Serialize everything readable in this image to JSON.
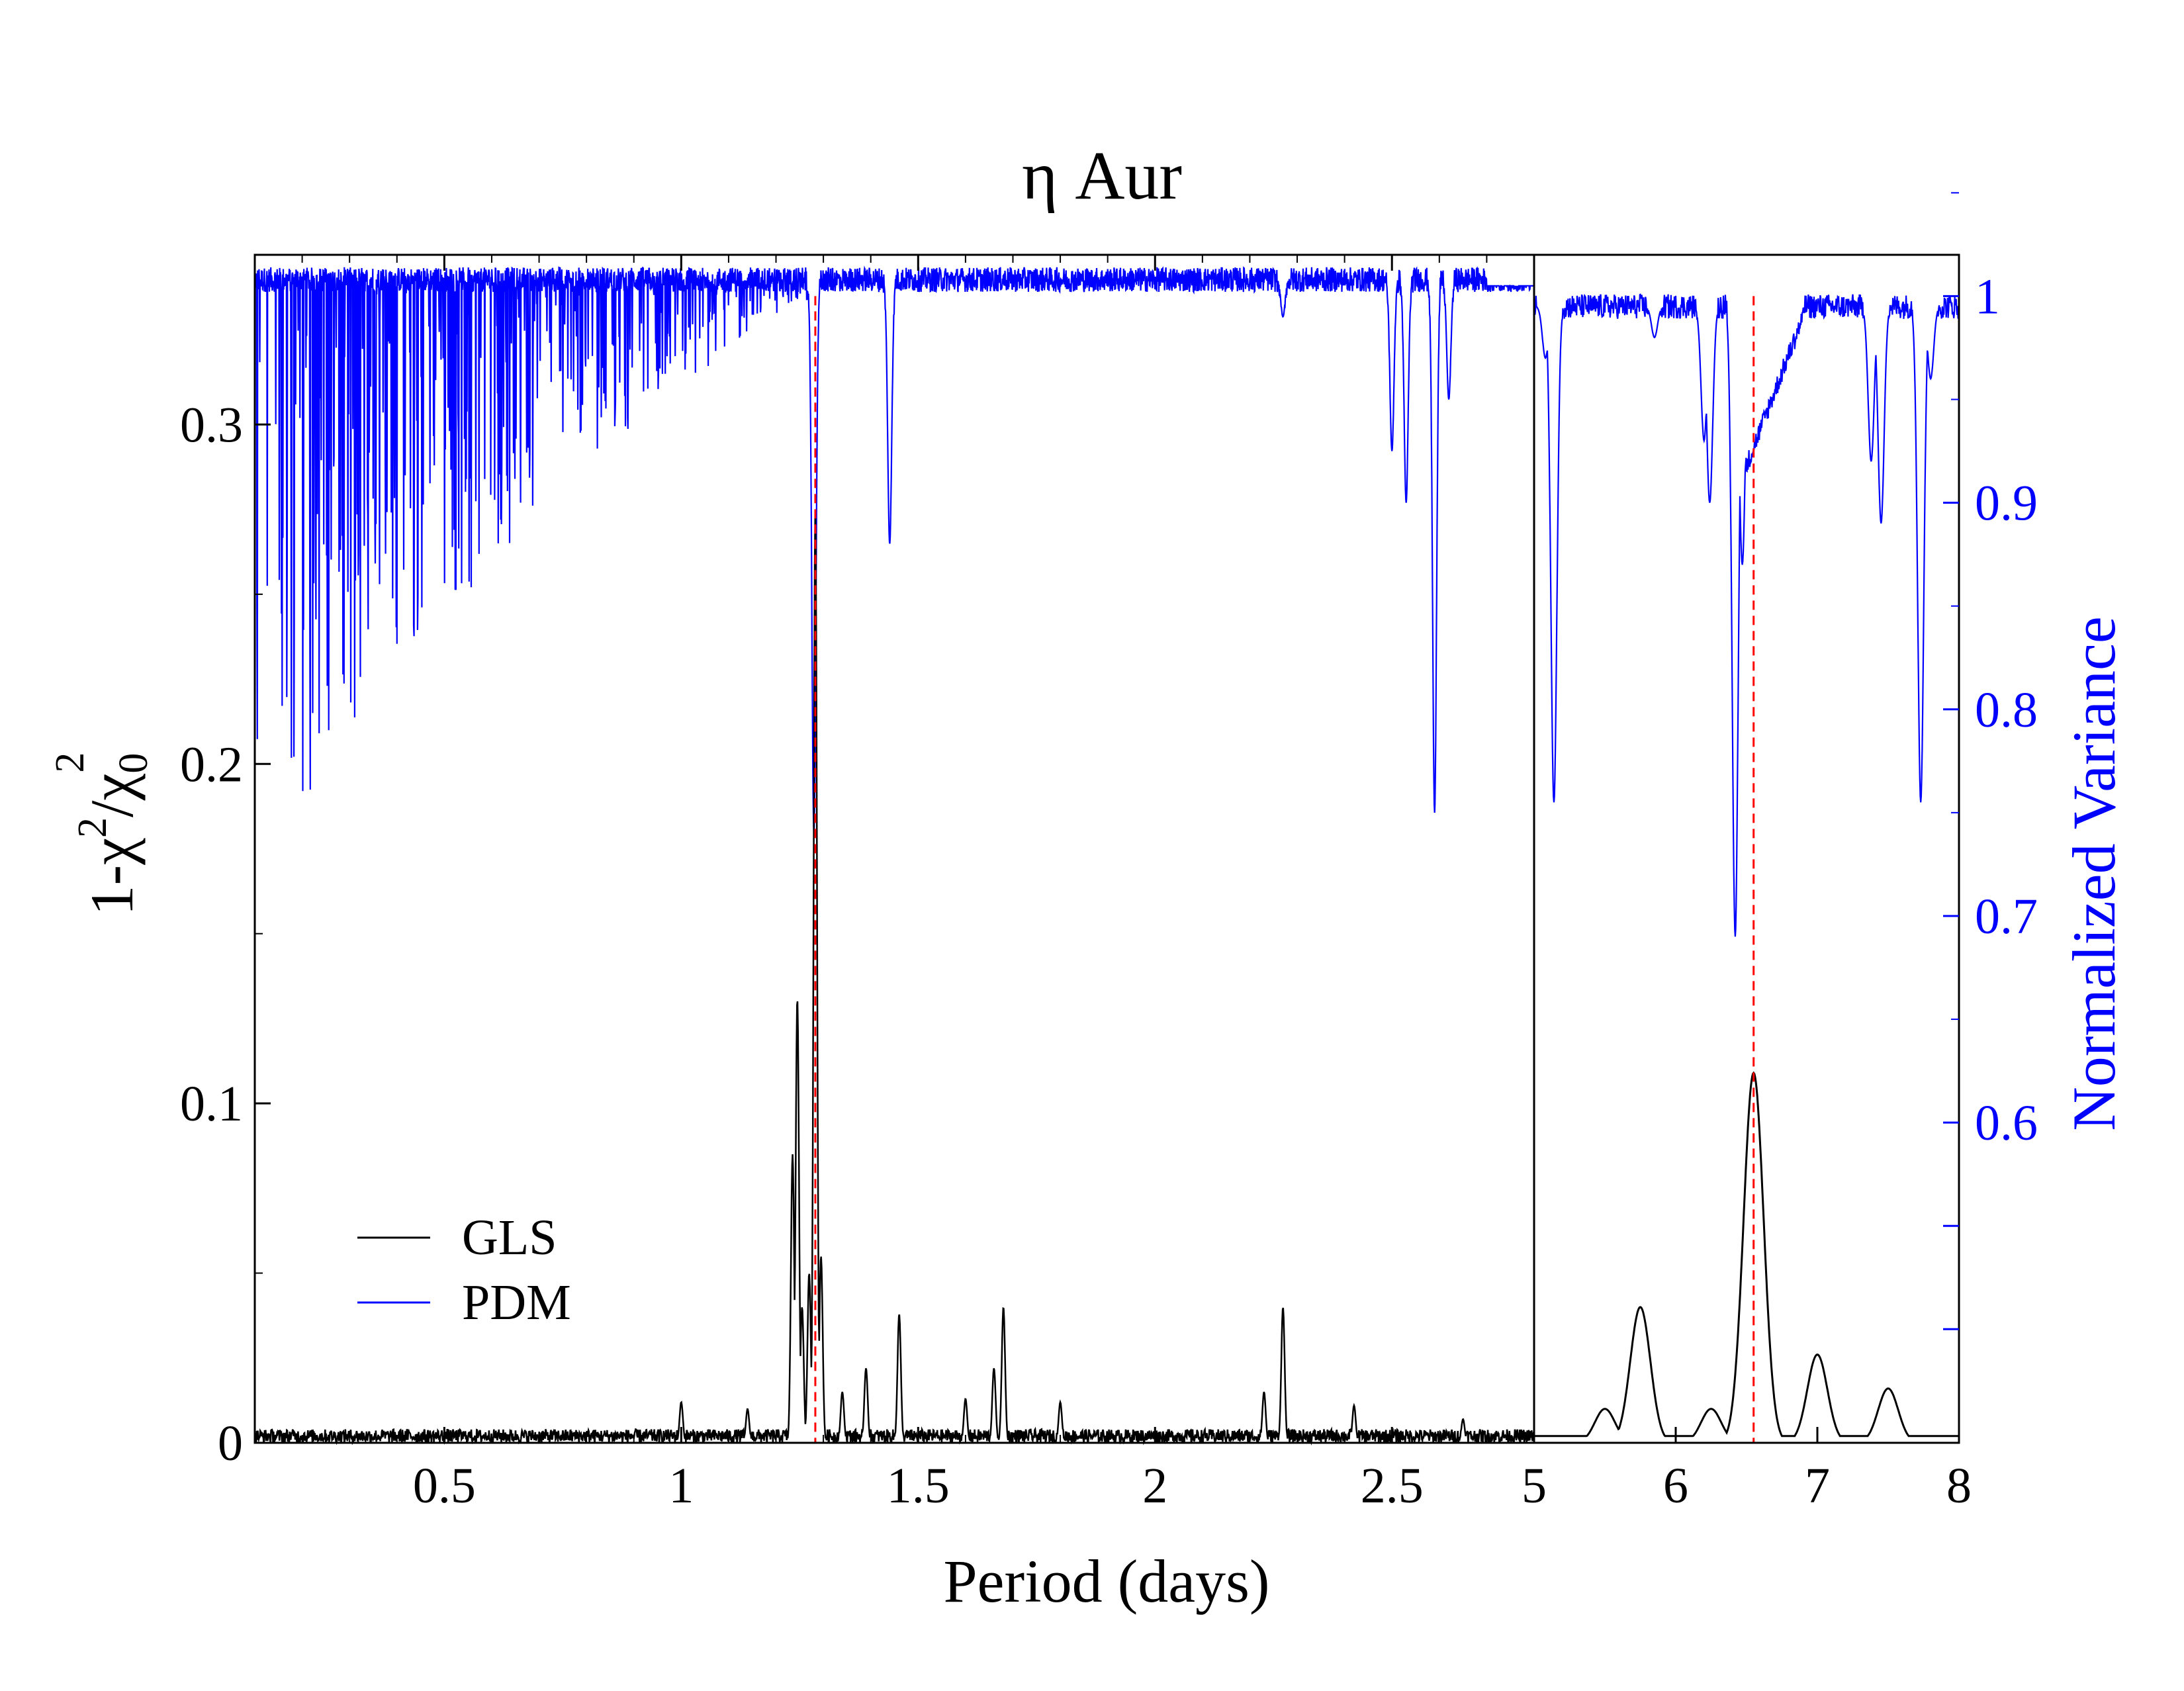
{
  "chart_data": {
    "type": "line",
    "title": "η Aur",
    "xlabel": "Period (days)",
    "ylabel_left": "1-χ²/χ₀²",
    "ylabel_left_parts": {
      "a": "1-χ",
      "sup1": "2",
      "b": "/χ",
      "sub": "0",
      "sup2": "2"
    },
    "ylabel_right": "Normalized Variance",
    "grid": false,
    "legend_position": "lower-left",
    "left_panel": {
      "xlim": [
        0.1,
        2.8
      ],
      "xticks": [
        0.5,
        1,
        1.5,
        2,
        2.5
      ],
      "xticklabels": [
        "0.5",
        "1",
        "1.5",
        "2",
        "2.5"
      ],
      "gls_peaks": [
        {
          "x": 1.0,
          "y": 0.012
        },
        {
          "x": 1.14,
          "y": 0.01
        },
        {
          "x": 1.235,
          "y": 0.085
        },
        {
          "x": 1.245,
          "y": 0.131
        },
        {
          "x": 1.255,
          "y": 0.04
        },
        {
          "x": 1.27,
          "y": 0.05
        },
        {
          "x": 1.283,
          "y": 0.275
        },
        {
          "x": 1.295,
          "y": 0.055
        },
        {
          "x": 1.34,
          "y": 0.015
        },
        {
          "x": 1.39,
          "y": 0.022
        },
        {
          "x": 1.46,
          "y": 0.038
        },
        {
          "x": 1.6,
          "y": 0.013
        },
        {
          "x": 1.66,
          "y": 0.022
        },
        {
          "x": 1.68,
          "y": 0.04
        },
        {
          "x": 1.8,
          "y": 0.012
        },
        {
          "x": 2.23,
          "y": 0.015
        },
        {
          "x": 2.27,
          "y": 0.04
        },
        {
          "x": 2.42,
          "y": 0.011
        },
        {
          "x": 2.65,
          "y": 0.007
        }
      ],
      "pdm_dips": [
        {
          "x": 1.28,
          "y": 0.74
        },
        {
          "x": 1.44,
          "y": 0.88
        },
        {
          "x": 2.27,
          "y": 0.99
        },
        {
          "x": 2.5,
          "y": 0.925
        },
        {
          "x": 2.53,
          "y": 0.9
        },
        {
          "x": 2.59,
          "y": 0.75
        },
        {
          "x": 2.62,
          "y": 0.95
        }
      ]
    },
    "right_panel": {
      "xlim": [
        5,
        8
      ],
      "xticks": [
        5,
        6,
        7,
        8
      ],
      "xticklabels": [
        "5",
        "6",
        "7",
        "8"
      ],
      "gls_peaks": [
        {
          "x": 5.5,
          "y": 0.01
        },
        {
          "x": 5.75,
          "y": 0.04
        },
        {
          "x": 6.25,
          "y": 0.01
        },
        {
          "x": 6.55,
          "y": 0.109
        },
        {
          "x": 7.0,
          "y": 0.026
        },
        {
          "x": 7.5,
          "y": 0.016
        }
      ],
      "pdm_dips": [
        {
          "x": 5.08,
          "y": 0.97
        },
        {
          "x": 5.14,
          "y": 0.755
        },
        {
          "x": 5.85,
          "y": 0.98
        },
        {
          "x": 6.2,
          "y": 0.93
        },
        {
          "x": 6.24,
          "y": 0.9
        },
        {
          "x": 6.42,
          "y": 0.69
        },
        {
          "x": 6.47,
          "y": 0.87
        },
        {
          "x": 7.38,
          "y": 0.92
        },
        {
          "x": 7.45,
          "y": 0.89
        },
        {
          "x": 7.73,
          "y": 0.755
        },
        {
          "x": 7.8,
          "y": 0.96
        }
      ]
    },
    "ylim_left": [
      0,
      0.35
    ],
    "yticks_left": [
      0,
      0.1,
      0.2,
      0.3
    ],
    "yticklabels_left": [
      "0",
      "0.1",
      "0.2",
      "0.3"
    ],
    "ylim_right": [
      0.445,
      1.02
    ],
    "yticks_right": [
      0.6,
      0.7,
      0.8,
      0.9,
      1.0
    ],
    "yticklabels_right": [
      "0.6",
      "0.7",
      "0.8",
      "0.9",
      "1"
    ],
    "reference_lines": [
      {
        "panel": "left",
        "x": 1.283,
        "style": "dashed",
        "color": "#ff0000"
      },
      {
        "panel": "right",
        "x": 6.55,
        "style": "dashed",
        "color": "#ff0000"
      }
    ],
    "series": [
      {
        "name": "GLS",
        "color": "#000000"
      },
      {
        "name": "PDM",
        "color": "#0000ff"
      }
    ]
  }
}
